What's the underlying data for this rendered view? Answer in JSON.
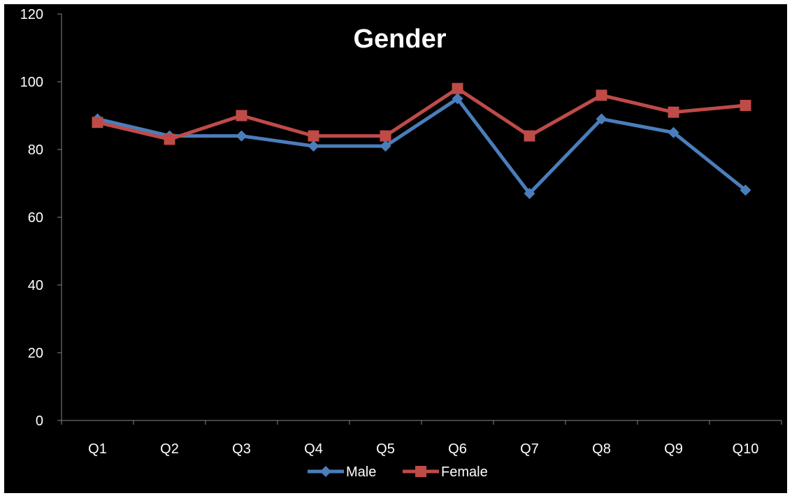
{
  "chart_data": {
    "type": "line",
    "title": "Gender",
    "xlabel": "",
    "ylabel": "",
    "categories": [
      "Q1",
      "Q2",
      "Q3",
      "Q4",
      "Q5",
      "Q6",
      "Q7",
      "Q8",
      "Q9",
      "Q10"
    ],
    "ylim": [
      0,
      120
    ],
    "yticks": [
      0,
      20,
      40,
      60,
      80,
      100,
      120
    ],
    "grid": false,
    "legend_position": "bottom",
    "series": [
      {
        "name": "Male",
        "color": "#4A7EBB",
        "marker": "diamond",
        "values": [
          89,
          84,
          84,
          81,
          81,
          95,
          67,
          89,
          85,
          68
        ]
      },
      {
        "name": "Female",
        "color": "#BE4B48",
        "marker": "square",
        "values": [
          88,
          83,
          90,
          84,
          84,
          98,
          84,
          96,
          91,
          93
        ]
      }
    ]
  }
}
